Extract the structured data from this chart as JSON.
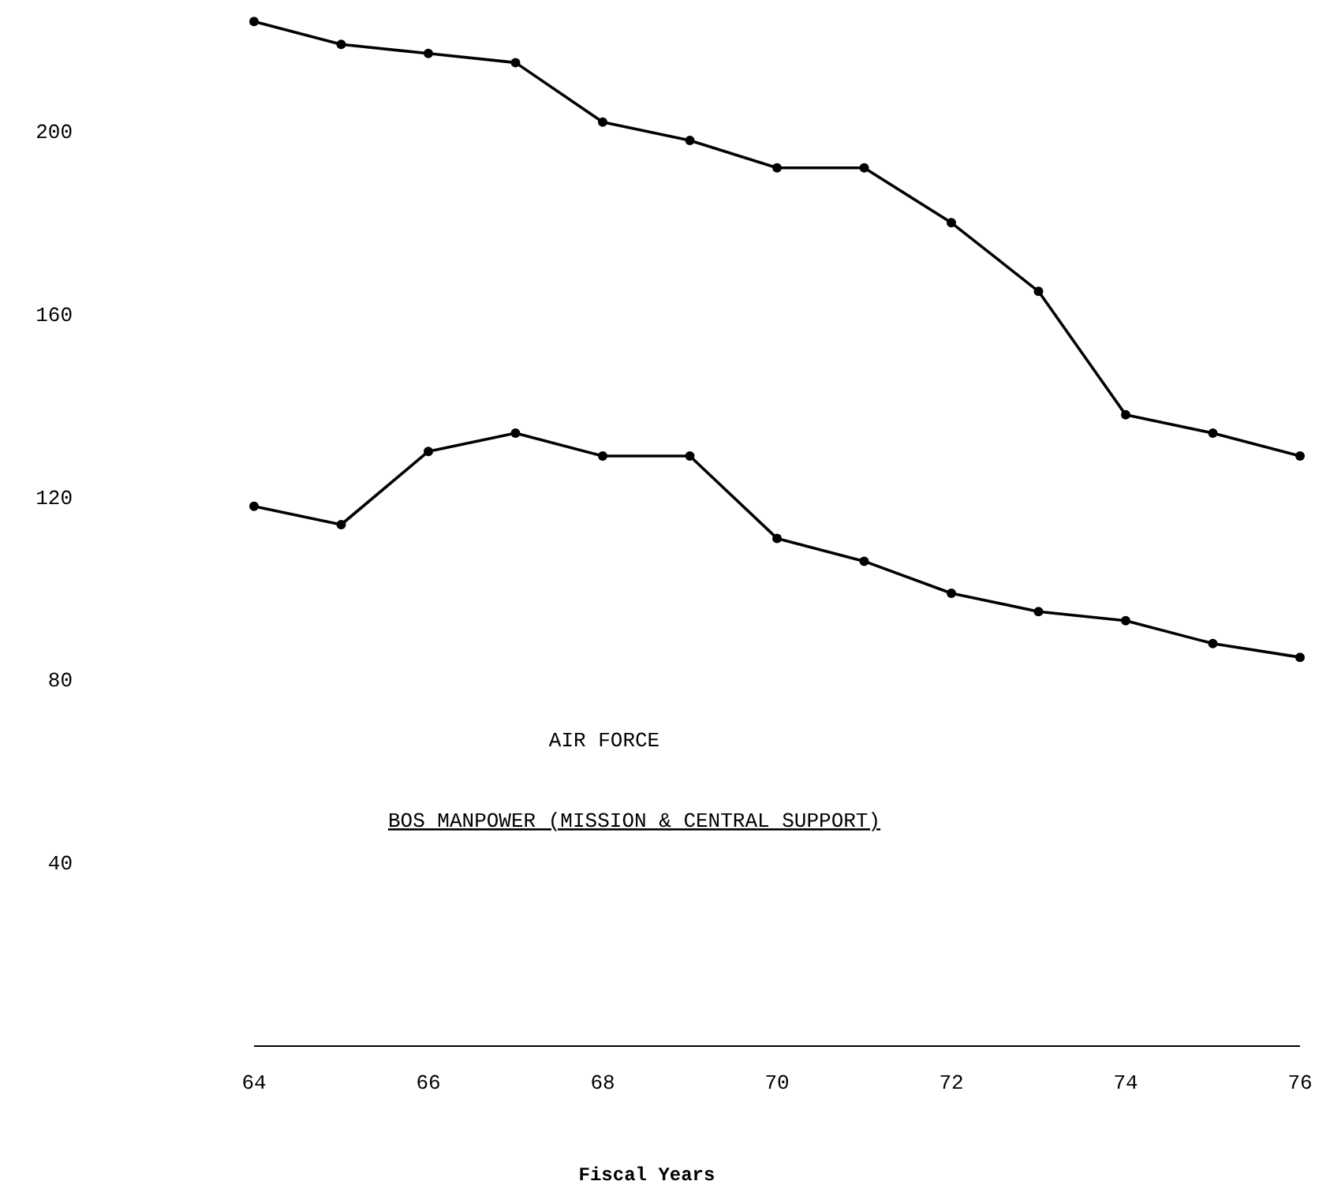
{
  "chart_data": {
    "type": "line",
    "title": "AIR FORCE",
    "subtitle": "BOS MANPOWER (MISSION & CENTRAL SUPPORT)",
    "xlabel": "Fiscal Years",
    "x": [
      64,
      65,
      66,
      67,
      68,
      69,
      70,
      71,
      72,
      73,
      74,
      75,
      76
    ],
    "series": [
      {
        "color": "#000000",
        "values": [
          224,
          219,
          217,
          215,
          202,
          198,
          192,
          192,
          180,
          165,
          138,
          134,
          129
        ]
      },
      {
        "color": "#000000",
        "values": [
          118,
          114,
          130,
          134,
          129,
          129,
          111,
          106,
          99,
          95,
          93,
          88,
          85
        ]
      }
    ],
    "xlim": [
      64,
      76
    ],
    "ylim": [
      0,
      228
    ],
    "xticks": [
      64,
      66,
      68,
      70,
      72,
      74,
      76
    ],
    "yticks": [
      40,
      80,
      120,
      160,
      200
    ],
    "marker": "circle",
    "line_style": "solid"
  }
}
